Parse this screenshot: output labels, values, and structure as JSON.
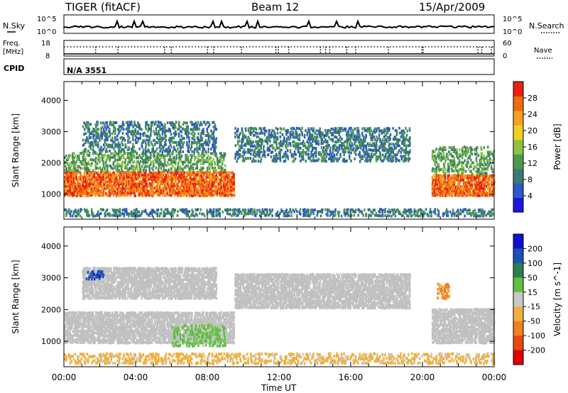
{
  "header": {
    "station": "TIGER (fitACF)",
    "beam": "Beam 12",
    "date": "15/Apr/2009"
  },
  "strip_labels": {
    "nsky": "N.Sky",
    "nsky_hi": "10^5",
    "nsky_lo": "10^0",
    "nsearch": "N.Search",
    "nsearch_hi": "10^5",
    "nsearch_lo": "10^0",
    "freq_line1": "Freq.",
    "freq_line2": "[MHz]",
    "freq_hi": "18",
    "freq_lo": "8",
    "nave": "Nave",
    "nave_hi": "60",
    "nave_lo": "0",
    "cpid": "CPID",
    "cpid_value": "N/A 3551"
  },
  "colors": {
    "power_scale": [
      "#1818e0",
      "#2f58c8",
      "#3a7a74",
      "#4f9a4a",
      "#8cc440",
      "#f0d020",
      "#f5a020",
      "#f06a10",
      "#e82010"
    ],
    "velocity_scale": [
      "#1010d0",
      "#1a50b8",
      "#2a8050",
      "#60c040",
      "#c8c8c8",
      "#f0b040",
      "#f08020",
      "#e84810",
      "#e00000"
    ],
    "ground_scatter": "#c0c0c0"
  },
  "chart_data": [
    {
      "type": "heatmap",
      "title": "",
      "xlabel": "",
      "ylabel": "Slant Range [km]",
      "ylim": [
        200,
        4600
      ],
      "xlim": [
        "00:00",
        "24:00"
      ],
      "yticks": [
        "1000",
        "2000",
        "3000",
        "4000"
      ],
      "colorbar": {
        "label": "Power [dB]",
        "ticks": [
          "4",
          "8",
          "12",
          "16",
          "20",
          "24",
          "28"
        ],
        "range": [
          0,
          32
        ]
      },
      "grid": false,
      "regions": [
        {
          "t_start": 0.0,
          "t_end": 9.5,
          "range_low": 900,
          "range_high": 1700,
          "level_db": 28
        },
        {
          "t_start": 0.0,
          "t_end": 9.0,
          "range_low": 1700,
          "range_high": 2300,
          "level_db": 12
        },
        {
          "t_start": 1.0,
          "t_end": 8.5,
          "range_low": 2300,
          "range_high": 3300,
          "level_db": 8
        },
        {
          "t_start": 9.5,
          "t_end": 19.3,
          "range_low": 2000,
          "range_high": 3100,
          "level_db": 8
        },
        {
          "t_start": 20.5,
          "t_end": 24.0,
          "range_low": 900,
          "range_high": 1600,
          "level_db": 28
        },
        {
          "t_start": 20.5,
          "t_end": 24.0,
          "range_low": 1600,
          "range_high": 2500,
          "level_db": 12
        },
        {
          "t_start": 0.0,
          "t_end": 24.0,
          "range_low": 250,
          "range_high": 500,
          "level_db": 8
        }
      ]
    },
    {
      "type": "heatmap",
      "title": "",
      "xlabel": "Time UT",
      "ylabel": "Slant Range [km]",
      "ylim": [
        200,
        4600
      ],
      "xlim": [
        "00:00",
        "24:00"
      ],
      "xticks": [
        "00:00",
        "04:00",
        "08:00",
        "12:00",
        "16:00",
        "20:00",
        "00:00"
      ],
      "yticks": [
        "1000",
        "2000",
        "3000",
        "4000"
      ],
      "colorbar": {
        "label": "Velocity [m s^-1]",
        "ticks": [
          "200",
          "100",
          "50",
          "15",
          "-15",
          "-50",
          "-100",
          "-200"
        ],
        "range": [
          -250,
          250
        ]
      },
      "grid": false,
      "regions": [
        {
          "t_start": 0.0,
          "t_end": 9.5,
          "range_low": 900,
          "range_high": 1900,
          "velocity": 0,
          "ground_scatter": true
        },
        {
          "t_start": 1.0,
          "t_end": 8.5,
          "range_low": 2300,
          "range_high": 3300,
          "velocity": 0,
          "ground_scatter": true
        },
        {
          "t_start": 9.5,
          "t_end": 19.3,
          "range_low": 2000,
          "range_high": 3100,
          "velocity": 0,
          "ground_scatter": true
        },
        {
          "t_start": 20.5,
          "t_end": 24.0,
          "range_low": 900,
          "range_high": 2000,
          "velocity": 0,
          "ground_scatter": true
        },
        {
          "t_start": 6.0,
          "t_end": 9.0,
          "range_low": 800,
          "range_high": 1500,
          "velocity": 50
        },
        {
          "t_start": 1.2,
          "t_end": 2.2,
          "range_low": 2900,
          "range_high": 3200,
          "velocity": 200
        },
        {
          "t_start": 20.8,
          "t_end": 21.5,
          "range_low": 2300,
          "range_high": 2800,
          "velocity": -100
        },
        {
          "t_start": 0.0,
          "t_end": 24.0,
          "range_low": 250,
          "range_high": 600,
          "velocity": -50
        }
      ]
    }
  ],
  "x_axis": {
    "ticks": [
      "00:00",
      "04:00",
      "08:00",
      "12:00",
      "16:00",
      "20:00",
      "00:00"
    ],
    "label": "Time UT"
  }
}
